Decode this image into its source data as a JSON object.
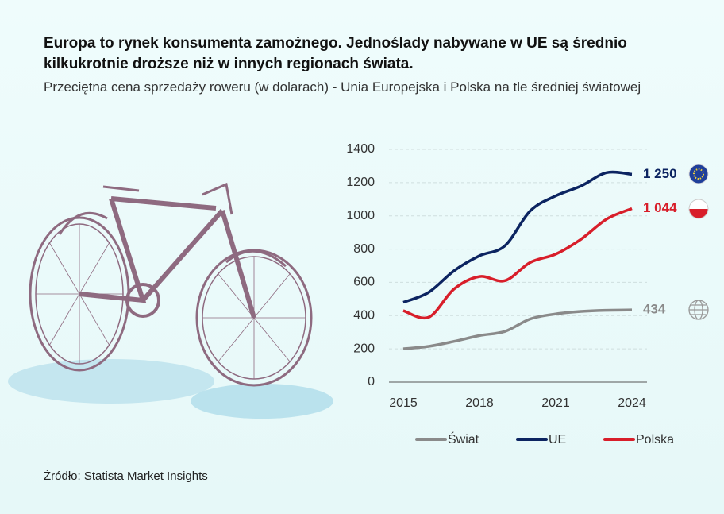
{
  "title": "Europa to rynek konsumenta zamożnego. Jednoślady nabywane w UE są średnio kilkukrotnie droższe niż w innych regionach świata.",
  "subtitle": "Przeciętna cena sprzedaży roweru (w dolarach) - Unia Europejska i Polska na tle średniej światowej",
  "source": "Źródło: Statista Market Insights",
  "chart_data": {
    "type": "line",
    "x": [
      2015,
      2016,
      2017,
      2018,
      2019,
      2020,
      2021,
      2022,
      2023,
      2024
    ],
    "xlim": [
      2015,
      2024
    ],
    "xticks": [
      2015,
      2018,
      2021,
      2024
    ],
    "ylim": [
      0,
      1400
    ],
    "yticks": [
      0,
      200,
      400,
      600,
      800,
      1000,
      1200,
      1400
    ],
    "grid": true,
    "legend": "bottom",
    "series": [
      {
        "name": "Świat",
        "color": "#8a8a8a",
        "values": [
          200,
          215,
          245,
          280,
          305,
          380,
          410,
          425,
          432,
          434
        ]
      },
      {
        "name": "UE",
        "color": "#0c2461",
        "values": [
          480,
          540,
          670,
          760,
          820,
          1030,
          1120,
          1180,
          1260,
          1250
        ],
        "value_labels": [
          null,
          null,
          null,
          null,
          null,
          null,
          null,
          null,
          null,
          "1 250"
        ]
      },
      {
        "name": "Polska",
        "color": "#d81e2a",
        "values": [
          430,
          390,
          560,
          635,
          610,
          720,
          770,
          860,
          980,
          1044
        ],
        "value_labels": [
          null,
          null,
          null,
          null,
          null,
          null,
          null,
          null,
          null,
          "1 044"
        ]
      }
    ]
  }
}
